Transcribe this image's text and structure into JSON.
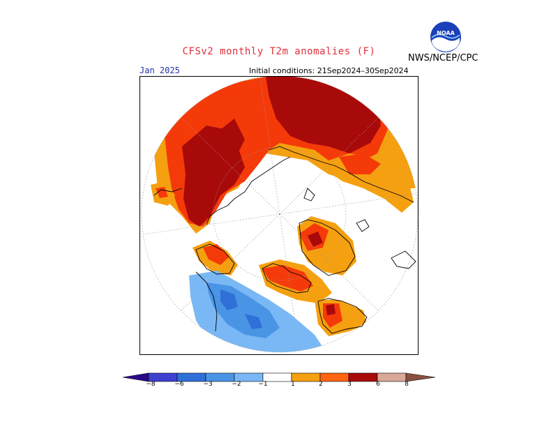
{
  "header": {
    "title": "CFSv2 monthly T2m anomalies (F)",
    "month": "Jan 2025",
    "initial_conditions": "Initial conditions: 21Sep2024–30Sep2024",
    "agency": "NWS/NCEP/CPC",
    "logo_text": "NOAA"
  },
  "legend": {
    "ticks": [
      "−8",
      "−6",
      "−3",
      "−2",
      "−1",
      "1",
      "2",
      "3",
      "6",
      "8"
    ],
    "colors": {
      "below_min": "#2a0a8a",
      "m8_m6": "#3f3fd0",
      "m6_m3": "#2f6fd8",
      "m3_m2": "#4a94e6",
      "m2_m1": "#7ab8f5",
      "neutral": "#ffffff",
      "p1_p2": "#f5a010",
      "p2_p3": "#ff6410",
      "p3_p6": "#f53a0a",
      "p6_p8": "#a80a0a",
      "p8_p10": "#d8a898",
      "above_max": "#8a5040"
    }
  },
  "map": {
    "projection": "north-polar-stereographic"
  }
}
